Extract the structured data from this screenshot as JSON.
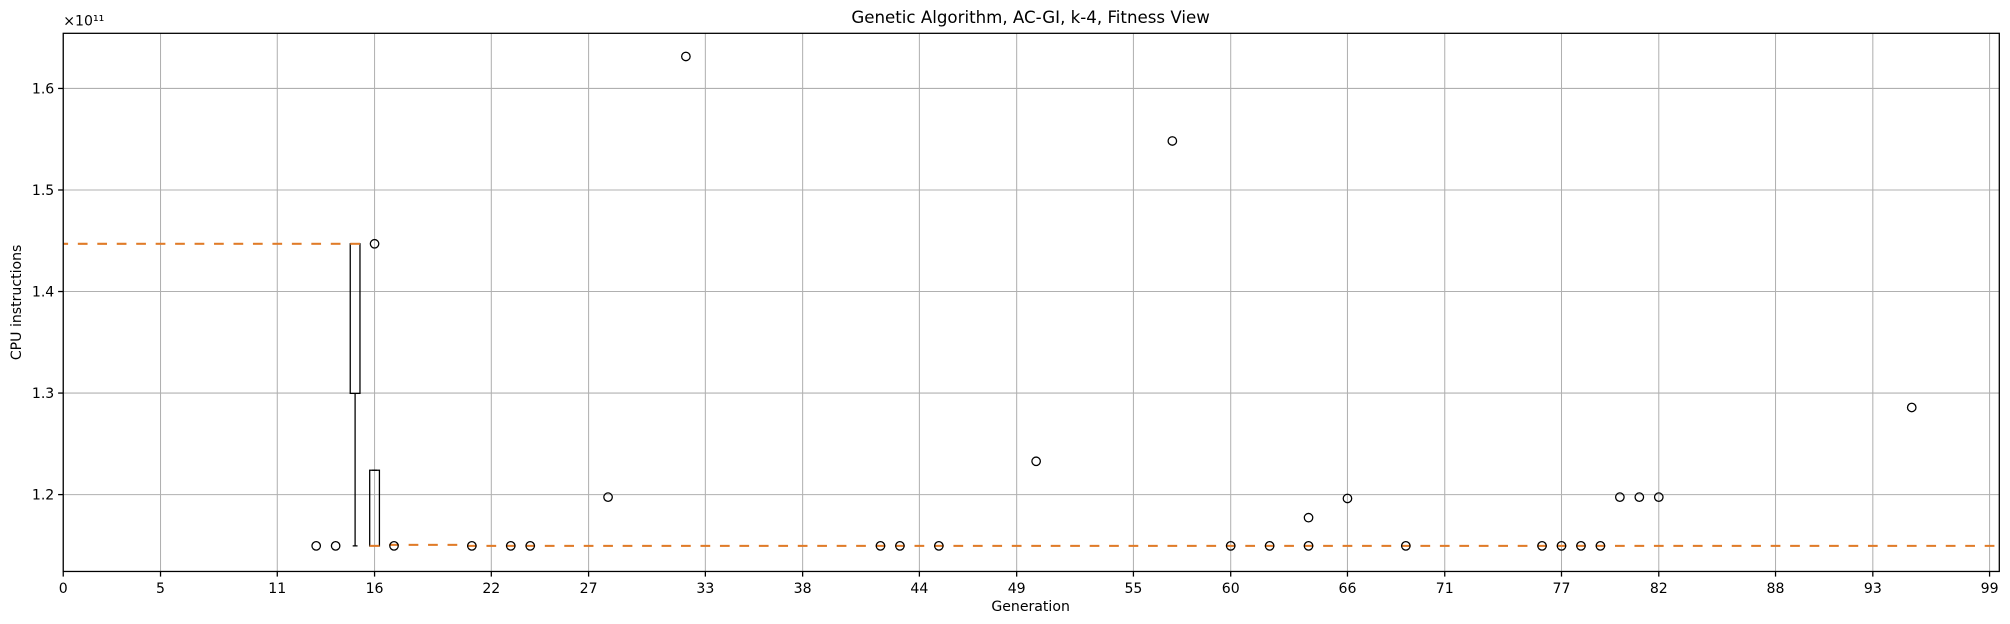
{
  "chart_data": {
    "type": "box",
    "title": "Genetic Algorithm, AC-GI, k-4, Fitness View",
    "xlabel": "Generation",
    "ylabel": "CPU instructions",
    "y_offset_label": "×10¹¹",
    "x": [
      0,
      1,
      2,
      3,
      4,
      5,
      6,
      7,
      8,
      9,
      10,
      11,
      12,
      13,
      14,
      15,
      16,
      17,
      18,
      19,
      20,
      21,
      22,
      23,
      24,
      25,
      26,
      27,
      28,
      29,
      30,
      31,
      32,
      33,
      34,
      35,
      36,
      37,
      38,
      39,
      40,
      41,
      42,
      43,
      44,
      45,
      46,
      47,
      48,
      49,
      50,
      51,
      52,
      53,
      54,
      55,
      56,
      57,
      58,
      59,
      60,
      61,
      62,
      63,
      64,
      65,
      66,
      67,
      68,
      69,
      70,
      71,
      72,
      73,
      74,
      75,
      76,
      77,
      78,
      79,
      80,
      81,
      82,
      83,
      84,
      85,
      86,
      87,
      88,
      89,
      90,
      91,
      92,
      93,
      94,
      95,
      96,
      97,
      98,
      99
    ],
    "medians": [
      1.447,
      1.447,
      1.447,
      1.447,
      1.447,
      1.447,
      1.447,
      1.447,
      1.447,
      1.447,
      1.447,
      1.447,
      1.447,
      1.447,
      1.447,
      1.447,
      1.1495,
      1.1505,
      1.1505,
      1.1505,
      1.1505,
      1.1495,
      1.1495,
      1.1495,
      1.1495,
      1.1495,
      1.1495,
      1.1495,
      1.1495,
      1.1495,
      1.1495,
      1.1495,
      1.1495,
      1.1495,
      1.1495,
      1.1495,
      1.1495,
      1.1495,
      1.1495,
      1.1495,
      1.1495,
      1.1495,
      1.1495,
      1.1495,
      1.1495,
      1.1495,
      1.1495,
      1.1495,
      1.1495,
      1.1495,
      1.1495,
      1.1495,
      1.1495,
      1.1495,
      1.1495,
      1.1495,
      1.1495,
      1.1495,
      1.1495,
      1.1495,
      1.1495,
      1.1495,
      1.1495,
      1.1495,
      1.1495,
      1.1495,
      1.1495,
      1.1495,
      1.1495,
      1.1495,
      1.1495,
      1.1495,
      1.1495,
      1.1495,
      1.1495,
      1.1495,
      1.1495,
      1.1495,
      1.1495,
      1.1495,
      1.1495,
      1.1495,
      1.1495,
      1.1495,
      1.1495,
      1.1495,
      1.1495,
      1.1495,
      1.1495,
      1.1495,
      1.1495,
      1.1495,
      1.1495,
      1.1495,
      1.1495,
      1.1495,
      1.1495,
      1.1495,
      1.1495,
      1.1495
    ],
    "median_color": "#e07b28",
    "boxes": [
      {
        "x": 15,
        "q1": 1.2997,
        "q3": 1.447,
        "whislo": 1.1495,
        "whishi": 1.447
      },
      {
        "x": 16,
        "q1": 1.1495,
        "q3": 1.224,
        "whislo": 1.1495,
        "whishi": 1.224
      }
    ],
    "fliers": [
      {
        "x": 13,
        "y": 1.1495
      },
      {
        "x": 14,
        "y": 1.1495
      },
      {
        "x": 16,
        "y": 1.447
      },
      {
        "x": 17,
        "y": 1.1495
      },
      {
        "x": 21,
        "y": 1.1495
      },
      {
        "x": 23,
        "y": 1.1495
      },
      {
        "x": 24,
        "y": 1.1495
      },
      {
        "x": 28,
        "y": 1.1975
      },
      {
        "x": 32,
        "y": 1.6315
      },
      {
        "x": 42,
        "y": 1.1495
      },
      {
        "x": 43,
        "y": 1.1495
      },
      {
        "x": 45,
        "y": 1.1495
      },
      {
        "x": 50,
        "y": 1.2328
      },
      {
        "x": 57,
        "y": 1.5483
      },
      {
        "x": 60,
        "y": 1.1495
      },
      {
        "x": 62,
        "y": 1.1495
      },
      {
        "x": 64,
        "y": 1.1495
      },
      {
        "x": 64,
        "y": 1.1773
      },
      {
        "x": 66,
        "y": 1.1962
      },
      {
        "x": 69,
        "y": 1.1495
      },
      {
        "x": 76,
        "y": 1.1495
      },
      {
        "x": 77,
        "y": 1.1495
      },
      {
        "x": 78,
        "y": 1.1495
      },
      {
        "x": 79,
        "y": 1.1495
      },
      {
        "x": 80,
        "y": 1.1975
      },
      {
        "x": 81,
        "y": 1.1975
      },
      {
        "x": 82,
        "y": 1.1975
      },
      {
        "x": 95,
        "y": 1.2858
      }
    ],
    "xlim": [
      0,
      99.5
    ],
    "xticks": [
      0,
      5,
      11,
      16,
      22,
      27,
      33,
      38,
      44,
      49,
      55,
      60,
      66,
      71,
      77,
      82,
      88,
      93,
      99
    ],
    "ylim": [
      1.1243,
      1.6543
    ],
    "yticks": [
      1.2,
      1.3,
      1.4,
      1.5,
      1.6
    ],
    "grid": true
  }
}
